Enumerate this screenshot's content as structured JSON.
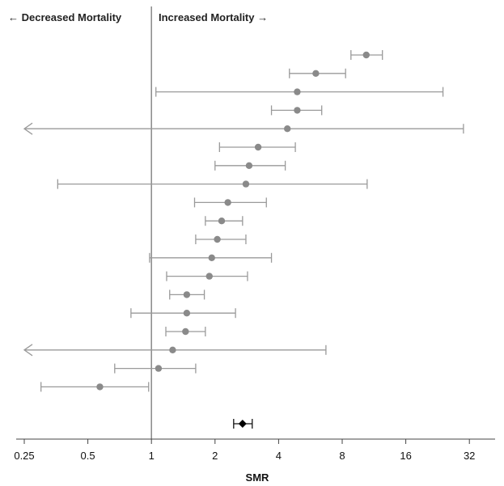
{
  "chart_data": {
    "type": "forest",
    "xlabel": "SMR",
    "xscale": "log2",
    "xlim": [
      0.22,
      42
    ],
    "reference_line": 1,
    "x_ticks": [
      0.25,
      0.5,
      1,
      2,
      4,
      8,
      16,
      32
    ],
    "x_tick_labels": [
      "0.25",
      "0.5",
      "1",
      "2",
      "4",
      "8",
      "16",
      "32"
    ],
    "region_labels": {
      "left": "← Decreased Mortality",
      "right": "Increased Mortality →"
    },
    "rows": [
      {
        "estimate": 10.4,
        "lower": 8.8,
        "upper": 12.4
      },
      {
        "estimate": 6.0,
        "lower": 4.5,
        "upper": 8.3
      },
      {
        "estimate": 4.9,
        "lower": 1.05,
        "upper": 24.0
      },
      {
        "estimate": 4.9,
        "lower": 3.7,
        "upper": 6.4
      },
      {
        "estimate": 4.4,
        "lower": 0.2,
        "upper": 30.0,
        "lower_truncated": true
      },
      {
        "estimate": 3.2,
        "lower": 2.1,
        "upper": 4.8
      },
      {
        "estimate": 2.9,
        "lower": 2.0,
        "upper": 4.3
      },
      {
        "estimate": 2.8,
        "lower": 0.36,
        "upper": 10.5
      },
      {
        "estimate": 2.3,
        "lower": 1.6,
        "upper": 3.5
      },
      {
        "estimate": 2.15,
        "lower": 1.8,
        "upper": 2.7
      },
      {
        "estimate": 2.05,
        "lower": 1.62,
        "upper": 2.8
      },
      {
        "estimate": 1.93,
        "lower": 0.98,
        "upper": 3.7
      },
      {
        "estimate": 1.88,
        "lower": 1.18,
        "upper": 2.85
      },
      {
        "estimate": 1.47,
        "lower": 1.22,
        "upper": 1.78
      },
      {
        "estimate": 1.47,
        "lower": 0.8,
        "upper": 2.5
      },
      {
        "estimate": 1.45,
        "lower": 1.17,
        "upper": 1.8
      },
      {
        "estimate": 1.26,
        "lower": 0.2,
        "upper": 6.7,
        "lower_truncated": true
      },
      {
        "estimate": 1.08,
        "lower": 0.67,
        "upper": 1.62
      },
      {
        "estimate": 0.57,
        "lower": 0.3,
        "upper": 0.97
      }
    ],
    "pooled": {
      "estimate": 2.7,
      "lower": 2.45,
      "upper": 3.0
    }
  }
}
